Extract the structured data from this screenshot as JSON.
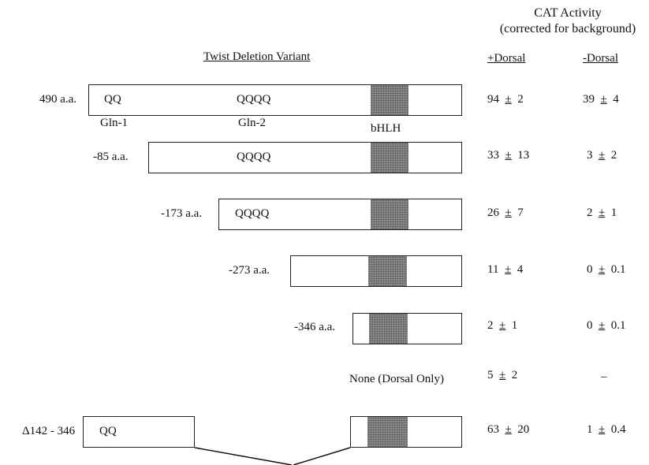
{
  "header": {
    "cat_title": "CAT Activity",
    "cat_subtitle": "(corrected for background)",
    "variant_title": "Twist Deletion Variant",
    "col_plus": "+Dorsal",
    "col_minus": "-Dorsal"
  },
  "domain_labels": {
    "gln1": "Gln-1",
    "gln2": "Gln-2",
    "bhlh": "bHLH"
  },
  "rows": [
    {
      "label": "490 a.a.",
      "qq": "QQ",
      "qqqq": "QQQQ",
      "plus": {
        "value": "94",
        "pm": "±",
        "err": "2"
      },
      "minus": {
        "value": "39",
        "pm": "±",
        "err": "4"
      }
    },
    {
      "label": "-85 a.a.",
      "qqqq": "QQQQ",
      "plus": {
        "value": "33",
        "pm": "±",
        "err": "13"
      },
      "minus": {
        "value": "3",
        "pm": "±",
        "err": "2"
      }
    },
    {
      "label": "-173 a.a.",
      "qqqq": "QQQQ",
      "plus": {
        "value": "26",
        "pm": "±",
        "err": "7"
      },
      "minus": {
        "value": "2",
        "pm": "±",
        "err": "1"
      }
    },
    {
      "label": "-273 a.a.",
      "plus": {
        "value": "11",
        "pm": "±",
        "err": "4"
      },
      "minus": {
        "value": "0",
        "pm": "±",
        "err": "0.1"
      }
    },
    {
      "label": "-346 a.a.",
      "plus": {
        "value": "2",
        "pm": "±",
        "err": "1"
      },
      "minus": {
        "value": "0",
        "pm": "±",
        "err": "0.1"
      }
    },
    {
      "label": "None (Dorsal Only)",
      "plus": {
        "value": "5",
        "pm": "±",
        "err": "2"
      },
      "minus_dash": "–"
    },
    {
      "label": "Δ142 - 346",
      "qq": "QQ",
      "plus": {
        "value": "63",
        "pm": "±",
        "err": "20"
      },
      "minus": {
        "value": "1",
        "pm": "±",
        "err": "0.4"
      }
    }
  ]
}
